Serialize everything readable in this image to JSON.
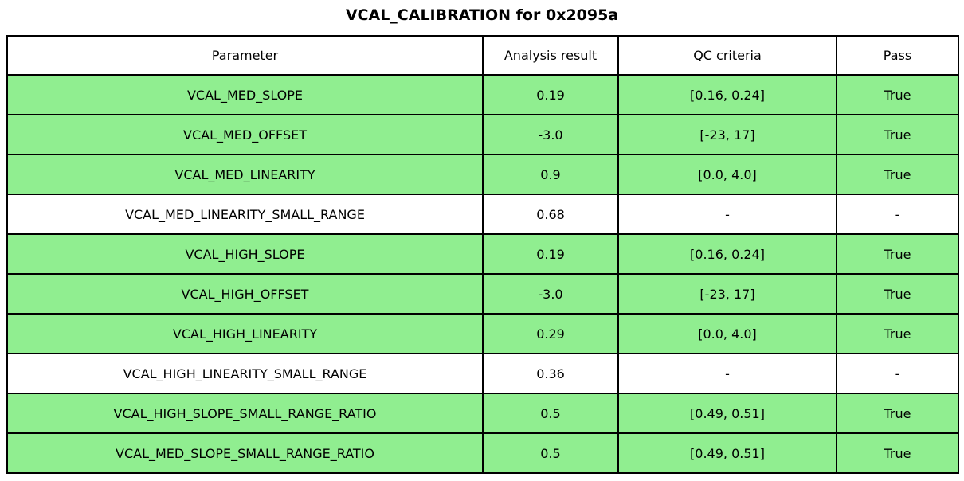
{
  "title": "VCAL_CALIBRATION for 0x2095a",
  "table": {
    "columns": [
      "Parameter",
      "Analysis result",
      "QC criteria",
      "Pass"
    ],
    "rows": [
      {
        "parameter": "VCAL_MED_SLOPE",
        "result": "0.19",
        "criteria": "[0.16, 0.24]",
        "pass": "True",
        "highlight": true
      },
      {
        "parameter": "VCAL_MED_OFFSET",
        "result": "-3.0",
        "criteria": "[-23, 17]",
        "pass": "True",
        "highlight": true
      },
      {
        "parameter": "VCAL_MED_LINEARITY",
        "result": "0.9",
        "criteria": "[0.0, 4.0]",
        "pass": "True",
        "highlight": true
      },
      {
        "parameter": "VCAL_MED_LINEARITY_SMALL_RANGE",
        "result": "0.68",
        "criteria": "-",
        "pass": "-",
        "highlight": false
      },
      {
        "parameter": "VCAL_HIGH_SLOPE",
        "result": "0.19",
        "criteria": "[0.16, 0.24]",
        "pass": "True",
        "highlight": true
      },
      {
        "parameter": "VCAL_HIGH_OFFSET",
        "result": "-3.0",
        "criteria": "[-23, 17]",
        "pass": "True",
        "highlight": true
      },
      {
        "parameter": "VCAL_HIGH_LINEARITY",
        "result": "0.29",
        "criteria": "[0.0, 4.0]",
        "pass": "True",
        "highlight": true
      },
      {
        "parameter": "VCAL_HIGH_LINEARITY_SMALL_RANGE",
        "result": "0.36",
        "criteria": "-",
        "pass": "-",
        "highlight": false
      },
      {
        "parameter": "VCAL_HIGH_SLOPE_SMALL_RANGE_RATIO",
        "result": "0.5",
        "criteria": "[0.49, 0.51]",
        "pass": "True",
        "highlight": true
      },
      {
        "parameter": "VCAL_MED_SLOPE_SMALL_RANGE_RATIO",
        "result": "0.5",
        "criteria": "[0.49, 0.51]",
        "pass": "True",
        "highlight": true
      }
    ]
  },
  "colors": {
    "pass_row_bg": "#90ee90",
    "neutral_row_bg": "#ffffff",
    "header_bg": "#ffffff",
    "border": "#000000",
    "text": "#000000"
  },
  "chart_data": {
    "type": "table",
    "title": "VCAL_CALIBRATION for 0x2095a",
    "columns": [
      "Parameter",
      "Analysis result",
      "QC criteria",
      "Pass"
    ],
    "rows": [
      [
        "VCAL_MED_SLOPE",
        "0.19",
        "[0.16, 0.24]",
        "True"
      ],
      [
        "VCAL_MED_OFFSET",
        "-3.0",
        "[-23, 17]",
        "True"
      ],
      [
        "VCAL_MED_LINEARITY",
        "0.9",
        "[0.0, 4.0]",
        "True"
      ],
      [
        "VCAL_MED_LINEARITY_SMALL_RANGE",
        "0.68",
        "-",
        "-"
      ],
      [
        "VCAL_HIGH_SLOPE",
        "0.19",
        "[0.16, 0.24]",
        "True"
      ],
      [
        "VCAL_HIGH_OFFSET",
        "-3.0",
        "[-23, 17]",
        "True"
      ],
      [
        "VCAL_HIGH_LINEARITY",
        "0.29",
        "[0.0, 4.0]",
        "True"
      ],
      [
        "VCAL_HIGH_LINEARITY_SMALL_RANGE",
        "0.36",
        "-",
        "-"
      ],
      [
        "VCAL_HIGH_SLOPE_SMALL_RANGE_RATIO",
        "0.5",
        "[0.49, 0.51]",
        "True"
      ],
      [
        "VCAL_MED_SLOPE_SMALL_RANGE_RATIO",
        "0.5",
        "[0.49, 0.51]",
        "True"
      ]
    ],
    "row_highlight_color_when_pass": "#90ee90",
    "legend_position": "none",
    "grid": true
  }
}
